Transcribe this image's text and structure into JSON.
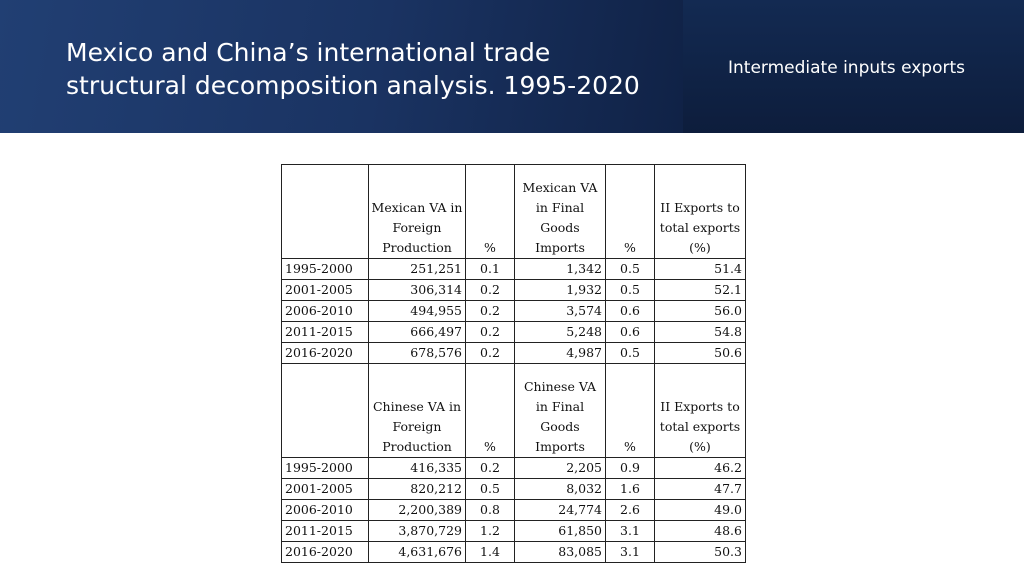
{
  "header": {
    "title_line1": "Mexico and China’s international trade",
    "title_line2": "structural decomposition analysis. 1995-2020",
    "subtitle": "Intermediate inputs exports"
  },
  "mexico": {
    "headers": [
      "",
      "Mexican VA in Foreign Production",
      "%",
      "Mexican VA in Final Goods Imports",
      "%",
      "II Exports to total exports (%)"
    ],
    "rows": [
      [
        "1995-2000",
        "251,251",
        "0.1",
        "1,342",
        "0.5",
        "51.4"
      ],
      [
        "2001-2005",
        "306,314",
        "0.2",
        "1,932",
        "0.5",
        "52.1"
      ],
      [
        "2006-2010",
        "494,955",
        "0.2",
        "3,574",
        "0.6",
        "56.0"
      ],
      [
        "2011-2015",
        "666,497",
        "0.2",
        "5,248",
        "0.6",
        "54.8"
      ],
      [
        "2016-2020",
        "678,576",
        "0.2",
        "4,987",
        "0.5",
        "50.6"
      ]
    ]
  },
  "china": {
    "headers": [
      "",
      "Chinese VA in Foreign Production",
      "%",
      "Chinese VA in Final Goods Imports",
      "%",
      "II Exports to total exports (%)"
    ],
    "rows": [
      [
        "1995-2000",
        "416,335",
        "0.2",
        "2,205",
        "0.9",
        "46.2"
      ],
      [
        "2001-2005",
        "820,212",
        "0.5",
        "8,032",
        "1.6",
        "47.7"
      ],
      [
        "2006-2010",
        "2,200,389",
        "0.8",
        "24,774",
        "2.6",
        "49.0"
      ],
      [
        "2011-2015",
        "3,870,729",
        "1.2",
        "61,850",
        "3.1",
        "48.6"
      ],
      [
        "2016-2020",
        "4,631,676",
        "1.4",
        "83,085",
        "3.1",
        "50.3"
      ]
    ]
  }
}
